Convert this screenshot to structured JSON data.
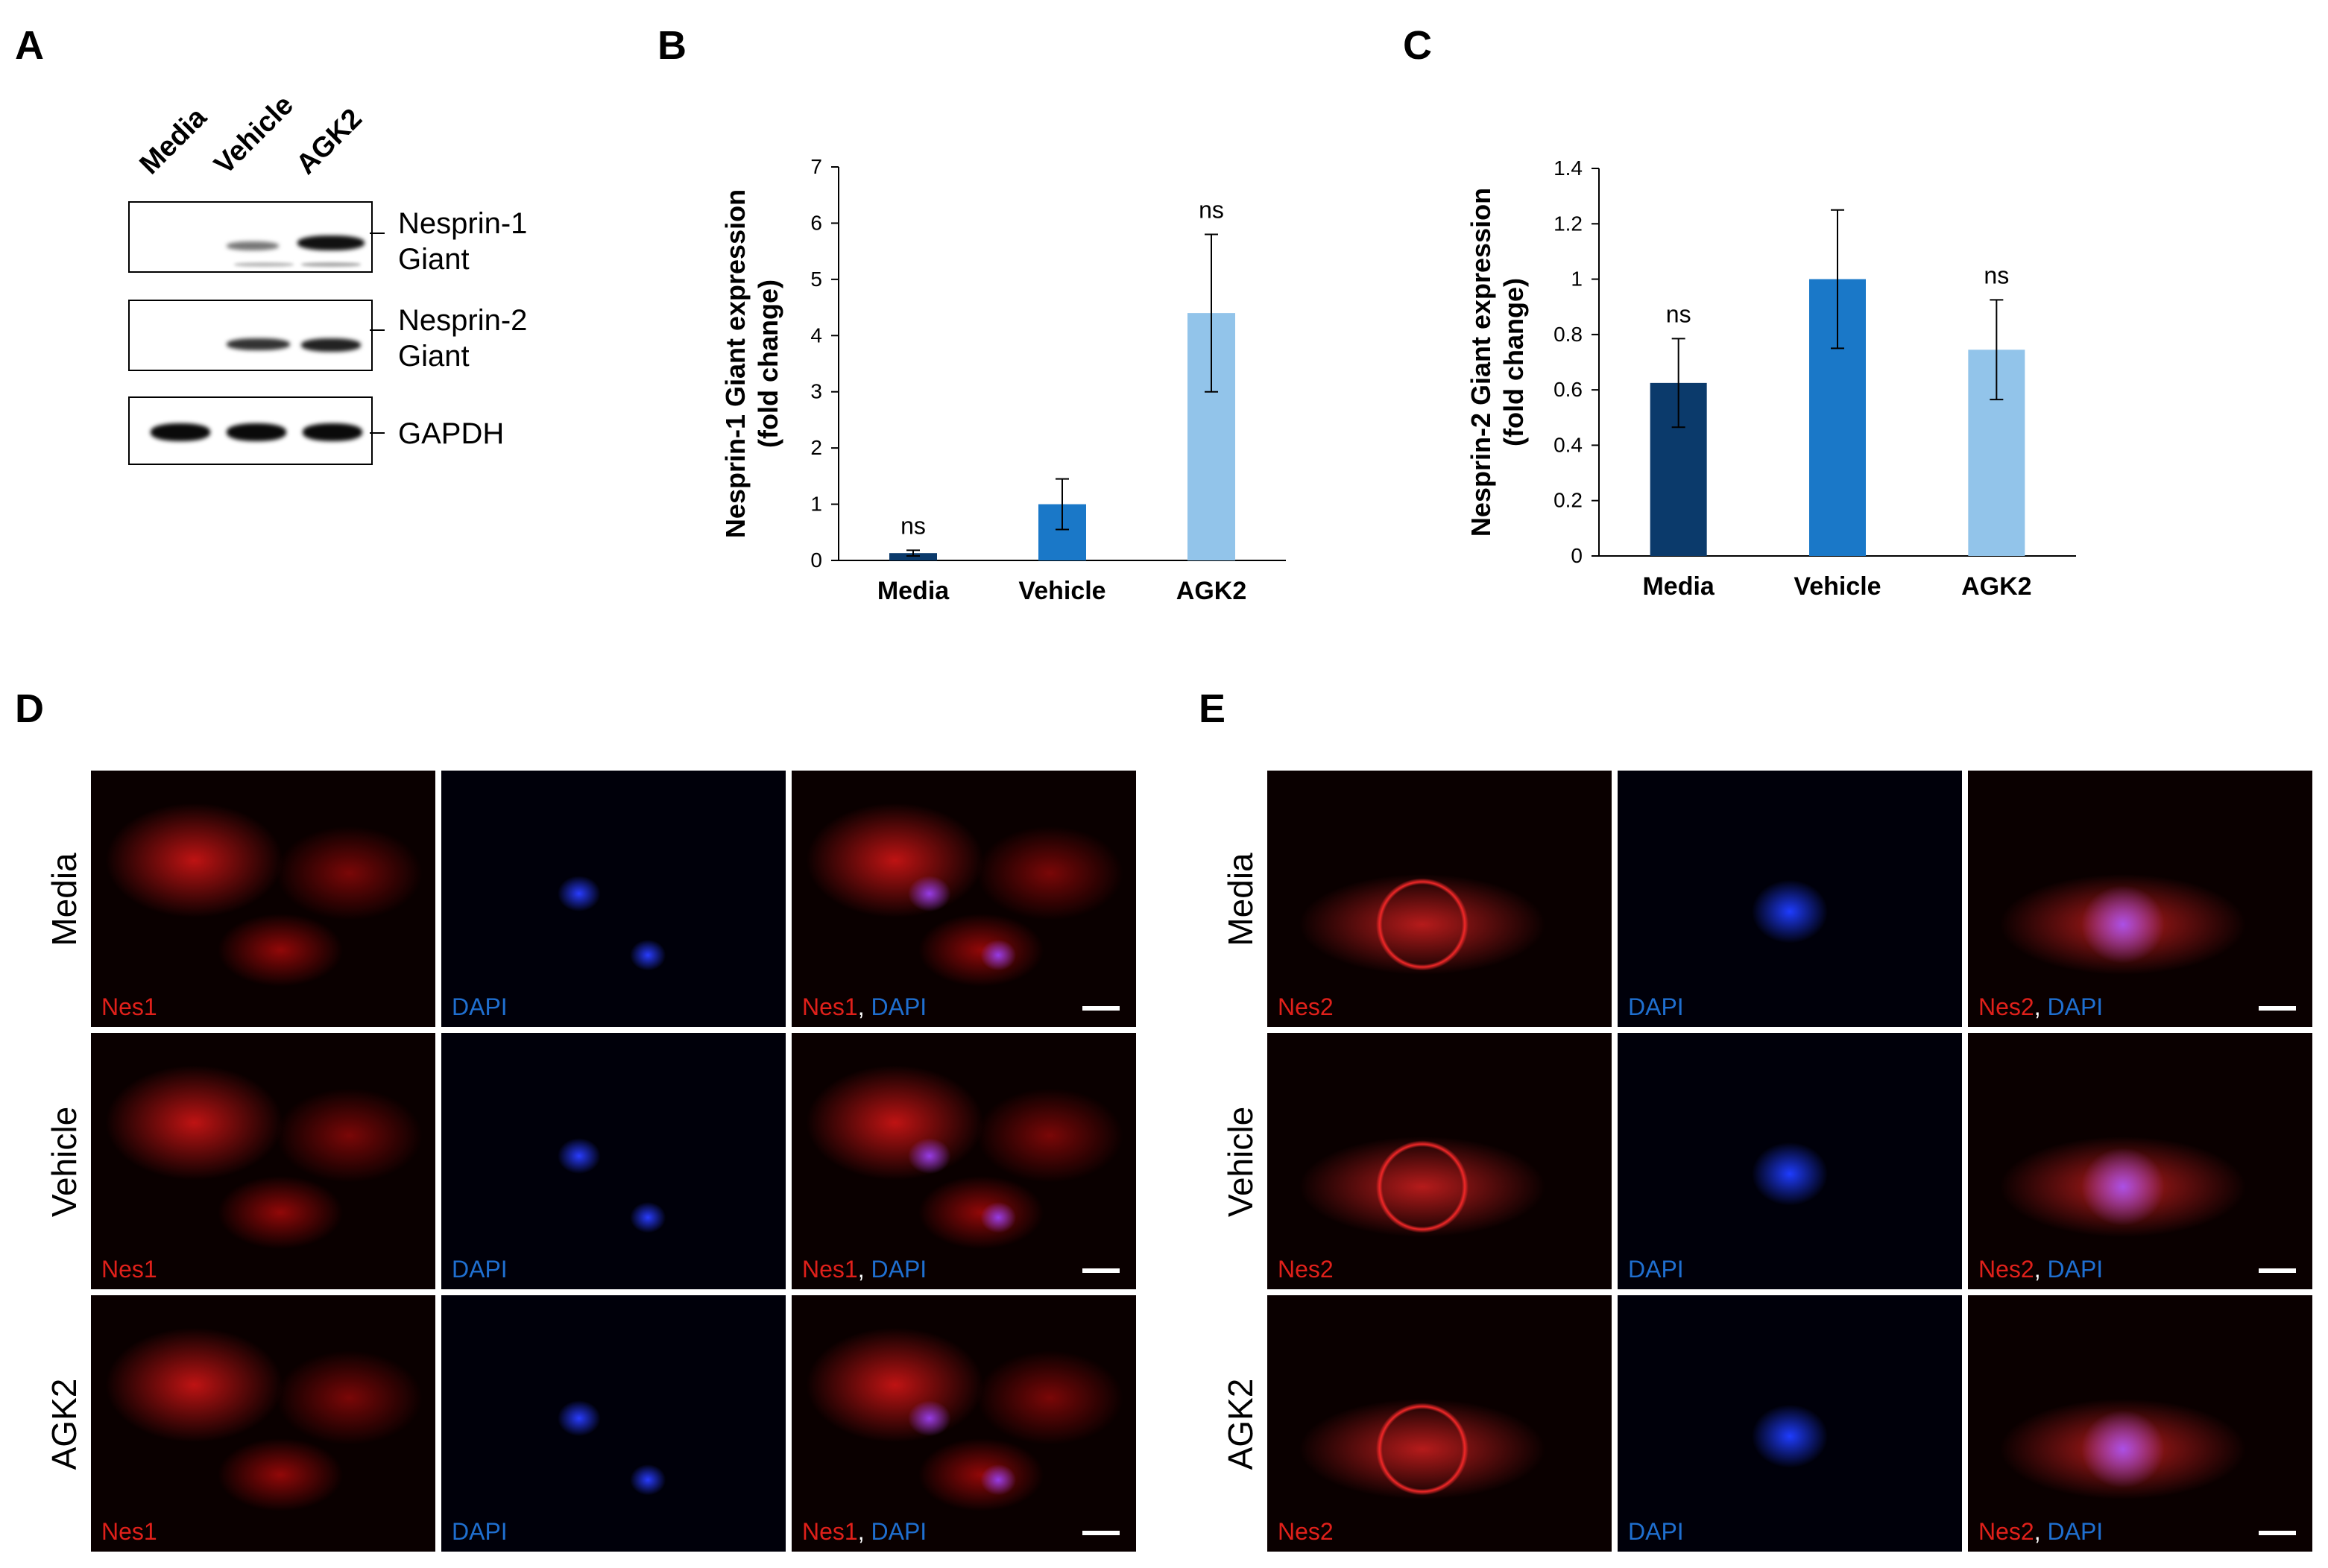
{
  "panels": {
    "a": "A",
    "b": "B",
    "c": "C",
    "d": "D",
    "e": "E"
  },
  "blot": {
    "columns": [
      "Media",
      "Vehicle",
      "AGK2"
    ],
    "rows": [
      {
        "label_line1": "Nesprin-1",
        "label_line2": "Giant"
      },
      {
        "label_line1": "Nesprin-2",
        "label_line2": "Giant"
      },
      {
        "label_line1": "GAPDH",
        "label_line2": ""
      }
    ]
  },
  "chart_data": [
    {
      "type": "bar",
      "categories": [
        "Media",
        "Vehicle",
        "AGK2"
      ],
      "values": [
        0.13,
        1.0,
        4.4
      ],
      "errors": [
        0.05,
        0.45,
        1.4
      ],
      "annotations": [
        "ns",
        "",
        "ns"
      ],
      "ylabel_line1": "Nesprin-1 Giant expression",
      "ylabel_line2": "(fold change)",
      "ylim": [
        0,
        7
      ],
      "yticks": [
        "0",
        "1",
        "2",
        "3",
        "4",
        "5",
        "6",
        "7"
      ],
      "colors": [
        "#0b3a6b",
        "#1a78c8",
        "#92c4ea"
      ]
    },
    {
      "type": "bar",
      "categories": [
        "Media",
        "Vehicle",
        "AGK2"
      ],
      "values": [
        0.625,
        1.0,
        0.745
      ],
      "errors": [
        0.16,
        0.25,
        0.18
      ],
      "annotations": [
        "ns",
        "",
        "ns"
      ],
      "ylabel_line1": "Nesprin-2 Giant expression",
      "ylabel_line2": "(fold change)",
      "ylim": [
        0,
        1.4
      ],
      "yticks": [
        "0",
        "0.2",
        "0.4",
        "0.6",
        "0.8",
        "1",
        "1.2",
        "1.4"
      ],
      "colors": [
        "#0b3a6b",
        "#1a78c8",
        "#92c4ea"
      ]
    }
  ],
  "micrographs": {
    "row_labels": [
      "Media",
      "Vehicle",
      "AGK2"
    ],
    "d_labels": {
      "red": "Nes1",
      "blue": "DAPI",
      "sep": ", "
    },
    "e_labels": {
      "red": "Nes2",
      "blue": "DAPI",
      "sep": ", "
    }
  }
}
